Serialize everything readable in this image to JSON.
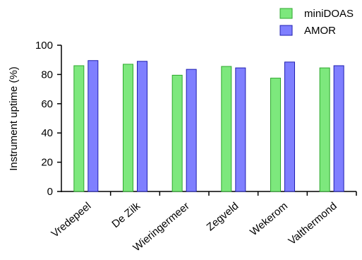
{
  "chart_data": {
    "type": "bar",
    "title": "",
    "xlabel": "",
    "ylabel": "Instrument uptime (%)",
    "ylim": [
      0,
      100
    ],
    "yticks": [
      0,
      20,
      40,
      60,
      80,
      100
    ],
    "grid": false,
    "legend_position": "top-right",
    "categories": [
      "Vredepeel",
      "De Zilk",
      "Wieringermeer",
      "Zegveld",
      "Wekerom",
      "Valthermond"
    ],
    "series": [
      {
        "name": "miniDOAS",
        "color": "#7de87d",
        "stroke": "#2fa82f",
        "values": [
          86,
          87,
          79.5,
          85.5,
          77.5,
          84.5
        ]
      },
      {
        "name": "AMOR",
        "color": "#7f7fff",
        "stroke": "#2020b0",
        "values": [
          89.5,
          89,
          83.5,
          84.5,
          88.5,
          86
        ]
      }
    ]
  }
}
